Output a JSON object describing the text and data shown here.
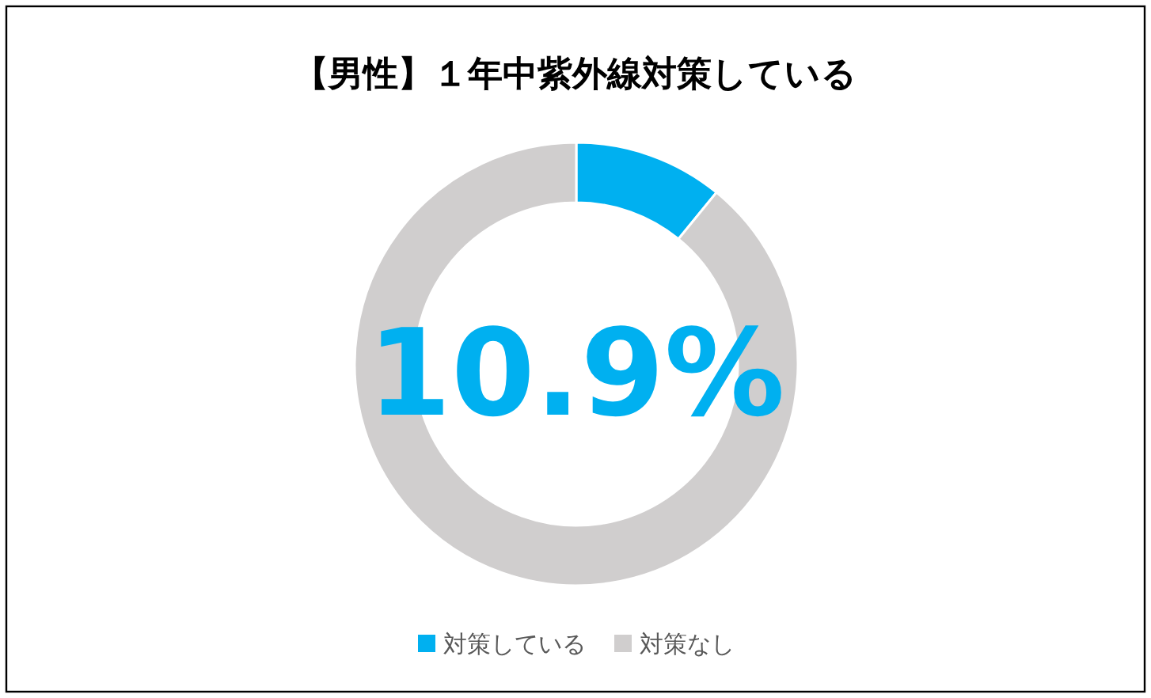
{
  "chart_data": {
    "type": "donut",
    "title": "【男性】１年中紫外線対策している",
    "categories": [
      "対策している",
      "対策なし"
    ],
    "values": [
      10.9,
      89.1
    ],
    "colors": [
      "#00b0f0",
      "#d0cece"
    ],
    "annotations": [
      "10.9%"
    ],
    "legend": "bottom"
  }
}
